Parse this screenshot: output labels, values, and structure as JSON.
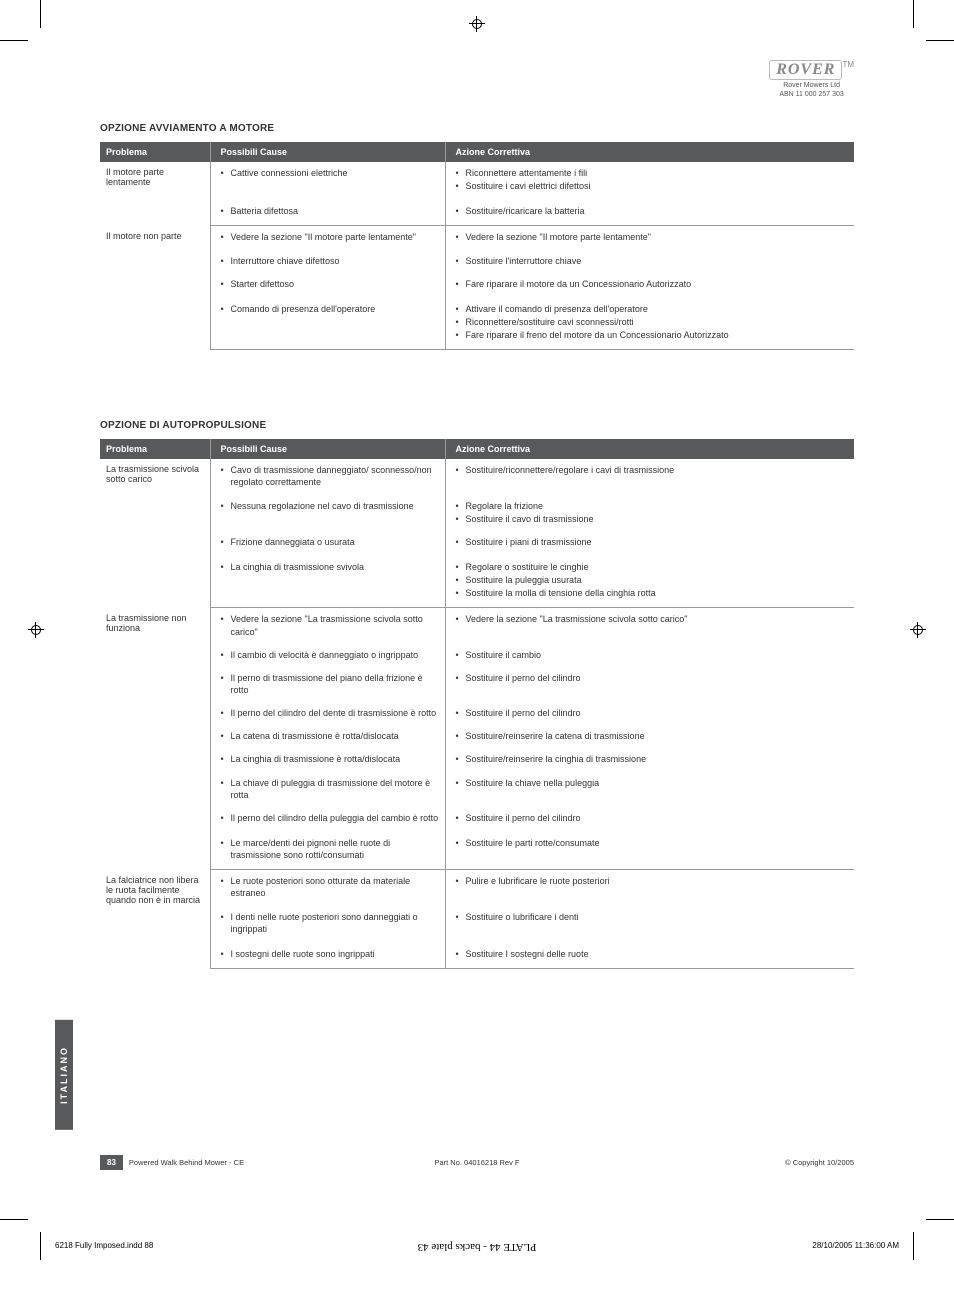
{
  "logo": {
    "brand": "ROVER",
    "tm": "TM",
    "company": "Rover Mowers Ltd",
    "abn": "ABN 11 000 257 303"
  },
  "section1": {
    "title": "OPZIONE AVVIAMENTO A MOTORE",
    "headers": {
      "problem": "Problema",
      "cause": "Possibili Cause",
      "action": "Azione Correttiva"
    },
    "rows": [
      {
        "problem": "Il motore parte lentamente",
        "groups": [
          {
            "cause": "Cattive connessioni elettriche",
            "actions": [
              "Riconnettere attentamente i fili",
              "Sostituire i cavi elettrici difettosi"
            ]
          },
          {
            "cause": "Batteria difettosa",
            "actions": [
              "Sostituire/ricaricare la batteria"
            ]
          }
        ]
      },
      {
        "problem": "Il motore non parte",
        "groups": [
          {
            "cause": "Vedere la sezione \"Il motore parte lentamente\"",
            "cause_indent": true,
            "actions": [
              "Vedere la sezione \"Il motore parte lentamente\""
            ]
          },
          {
            "cause": "Interruttore chiave difettoso",
            "actions": [
              "Sostituire l'interruttore chiave"
            ]
          },
          {
            "cause": "Starter difettoso",
            "actions": [
              "Fare riparare il motore da un Concessionario Autorizzato"
            ]
          },
          {
            "cause": "Comando di presenza dell'operatore",
            "actions": [
              "Attivare il comando di presenza dell'operatore",
              "Riconnettere/sostituire cavi sconnessi/rotti",
              "Fare riparare il freno del motore da un Concessionario Autorizzato"
            ]
          }
        ]
      }
    ]
  },
  "section2": {
    "title": "OPZIONE DI AUTOPROPULSIONE",
    "headers": {
      "problem": "Problema",
      "cause": "Possibili Cause",
      "action": "Azione Correttiva"
    },
    "rows": [
      {
        "problem": "La trasmissione scivola sotto carico",
        "groups": [
          {
            "cause": "Cavo di trasmissione danneggiato/ sconnesso/non regolato correttamente",
            "cause_indent": true,
            "actions": [
              "Sostituire/riconnettere/regolare i cavi di trasmissione"
            ]
          },
          {
            "cause": "Nessuna regolazione nel cavo di trasmissione",
            "cause_indent": true,
            "actions": [
              "Regolare la frizione",
              "Sostituire il cavo di trasmissione"
            ]
          },
          {
            "cause": "Frizione danneggiata o usurata",
            "actions": [
              "Sostituire i piani di trasmissione"
            ]
          },
          {
            "cause": "La cinghia di trasmissione svivola",
            "actions": [
              "Regolare o sostituire le cinghie",
              "Sostituire la puleggia usurata",
              "Sostituire la molla di tensione della cinghia rotta"
            ]
          }
        ]
      },
      {
        "problem": "La trasmissione non funziona",
        "groups": [
          {
            "cause": "Vedere la sezione \"La trasmissione scivola sotto carico\"",
            "cause_indent": true,
            "actions": [
              "Vedere la sezione \"La trasmissione scivola sotto carico\""
            ]
          },
          {
            "cause": "Il cambio di velocità è danneggiato o ingrippato",
            "cause_indent": true,
            "actions": [
              "Sostituire il cambio"
            ]
          },
          {
            "cause": "Il perno di trasmissione del piano della frizione è rotto",
            "cause_indent": true,
            "actions": [
              "Sostituire il perno del cilindro"
            ]
          },
          {
            "cause": "Il perno del cilindro del dente di trasmissione è rotto",
            "cause_indent": true,
            "actions": [
              "Sostituire il perno del cilindro"
            ]
          },
          {
            "cause": "La catena di trasmissione è rotta/dislocata",
            "actions": [
              "Sostituire/reinserire la catena di trasmissione"
            ]
          },
          {
            "cause": "La cinghia di trasmissione è rotta/dislocata",
            "actions": [
              "Sostituire/reinserire la cinghia di trasmissione"
            ]
          },
          {
            "cause": "La chiave di puleggia di trasmissione del motore è rotta",
            "cause_indent": true,
            "actions": [
              "Sostituire la chiave nella puleggia"
            ]
          },
          {
            "cause": "Il perno del cilindro della puleggia del cambio è rotto",
            "cause_indent": true,
            "actions": [
              "Sostituire il perno del cilindro"
            ]
          },
          {
            "cause": "Le marce/denti dei pignoni nelle ruote di trasmissione sono rotti/consumati",
            "cause_indent": true,
            "actions": [
              "Sostituire le parti rotte/consumate"
            ]
          }
        ]
      },
      {
        "problem": "La falciatrice non libera le ruota facilmente quando non è in marcia",
        "groups": [
          {
            "cause": "Le ruote posteriori sono otturate da materiale estraneo",
            "cause_indent": true,
            "actions": [
              "Pulire e lubrificare le ruote posteriori"
            ]
          },
          {
            "cause": "I denti nelle ruote posteriori sono danneggiati o ingrippati",
            "cause_indent": true,
            "actions": [
              "Sostituire o lubrificare i denti"
            ]
          },
          {
            "cause": "I sostegni delle ruote sono ingrippati",
            "actions": [
              "Sostituire I sostegni delle ruote"
            ]
          }
        ]
      }
    ]
  },
  "sideTab": "ITALIANO",
  "footer": {
    "pageNum": "83",
    "left": "Powered Walk Behind Mower - CE",
    "center": "Part No. 04016218 Rev F",
    "right": "© Copyright 10/2005"
  },
  "imprint": {
    "left": "6218 Fully Imposed.indd   88",
    "center": "PLATE 44 - backs plate 43",
    "right": "28/10/2005   11:36:00 AM"
  },
  "colors": {
    "headerBg": "#58595b",
    "headerText": "#ffffff",
    "border": "#999999",
    "text": "#333333"
  }
}
